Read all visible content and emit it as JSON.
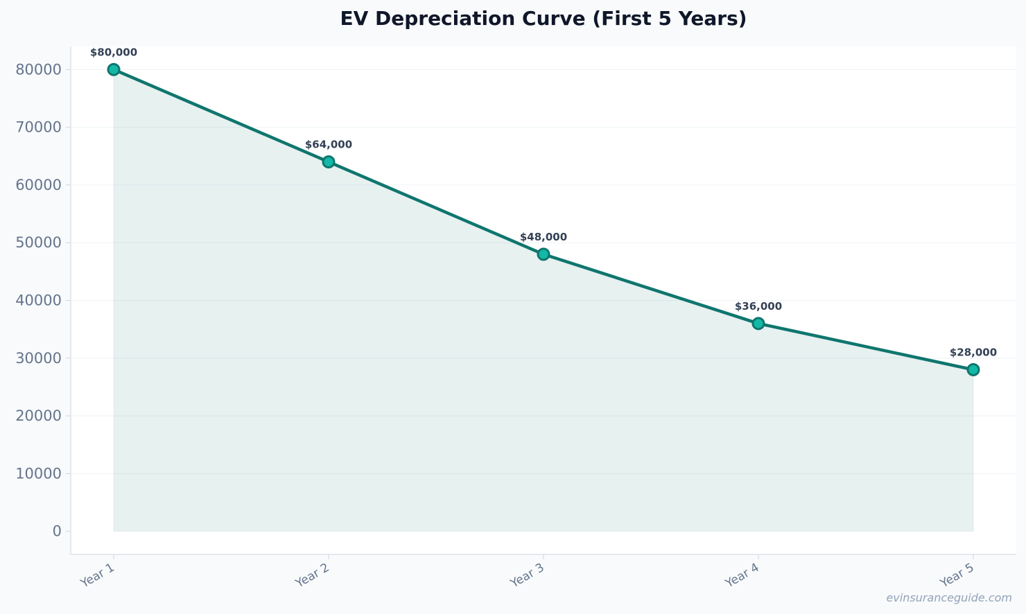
{
  "chart_data": {
    "type": "line",
    "title": "EV Depreciation Curve (First 5 Years)",
    "categories": [
      "Year 1",
      "Year 2",
      "Year 3",
      "Year 4",
      "Year 5"
    ],
    "series": [
      {
        "values": [
          80000,
          64000,
          48000,
          36000,
          28000
        ],
        "labels": [
          "$80,000",
          "$64,000",
          "$48,000",
          "$36,000",
          "$28,000"
        ]
      }
    ],
    "yticks": [
      0,
      10000,
      20000,
      30000,
      40000,
      50000,
      60000,
      70000,
      80000
    ],
    "ylim": [
      -4000,
      84000
    ],
    "xlabel": "",
    "ylabel": "",
    "grid": true,
    "area_fill": true,
    "colors": {
      "line": "#0f766e",
      "marker_fill": "#14b8a6",
      "area": "#0f766e"
    }
  },
  "watermark": "evinsuranceguide.com"
}
